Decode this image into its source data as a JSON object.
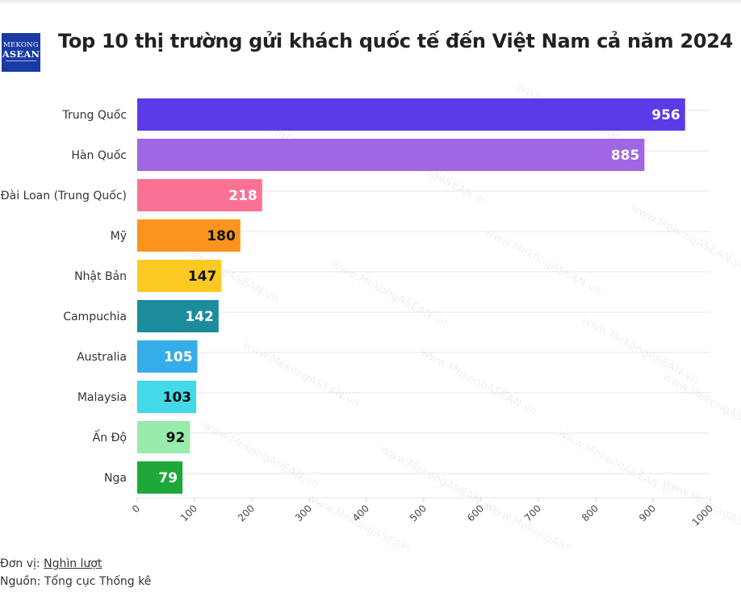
{
  "logo": {
    "line1": "MEKONG",
    "line2": "ASEAN"
  },
  "footer": {
    "unit_label": "Đơn vị:",
    "unit_value": "Nghìn lượt",
    "source_label": "Nguồn:",
    "source_value": "Tổng cục Thống kê"
  },
  "watermark_text": "www.MekongASEAN.vn",
  "chart_data": {
    "type": "bar",
    "orientation": "horizontal",
    "title": "Top 10 thị trường gửi khách quốc tế đến Việt Nam cả năm 2024",
    "categories": [
      "Trung Quốc",
      "Hàn Quốc",
      "Đài Loan (Trung Quốc)",
      "Mỹ",
      "Nhật Bản",
      "Campuchia",
      "Australia",
      "Malaysia",
      "Ấn Độ",
      "Nga"
    ],
    "values": [
      956,
      885,
      218,
      180,
      147,
      142,
      105,
      103,
      92,
      79
    ],
    "colors": [
      "#5b3be8",
      "#a066e3",
      "#fb7195",
      "#fb941e",
      "#fcca22",
      "#1a8c9c",
      "#36ade9",
      "#43d9e6",
      "#97ebab",
      "#20a73a"
    ],
    "label_colors": [
      "#ffffff",
      "#ffffff",
      "#ffffff",
      "#111111",
      "#111111",
      "#ffffff",
      "#ffffff",
      "#111111",
      "#111111",
      "#ffffff"
    ],
    "xlim": [
      0,
      1000
    ],
    "xticks": [
      0,
      100,
      200,
      300,
      400,
      500,
      600,
      700,
      800,
      900,
      1000
    ],
    "grid": true,
    "legend": "none"
  }
}
